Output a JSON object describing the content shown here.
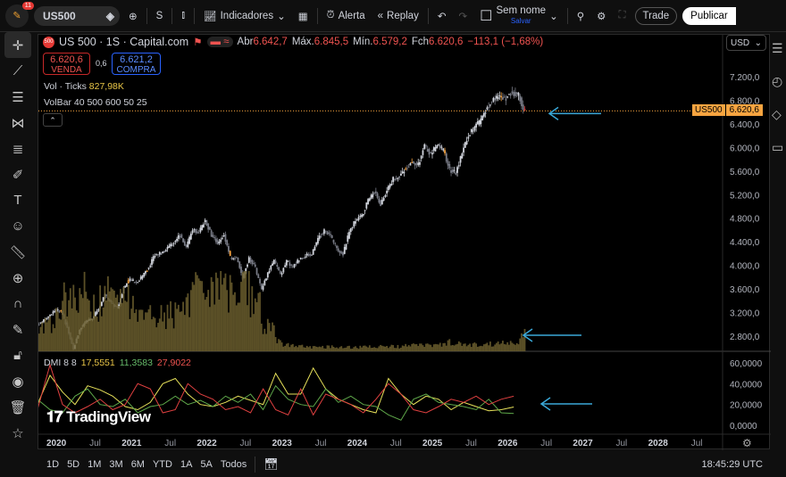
{
  "toolbar": {
    "notifications": "11",
    "symbol": "US500",
    "interval": "S",
    "indicators": "Indicadores",
    "alert": "Alerta",
    "replay": "Replay",
    "layout_name": "Sem nome",
    "layout_save": "Salvar",
    "trade": "Trade",
    "publish": "Publicar"
  },
  "legend": {
    "title": "US 500 · 1S · Capital.com",
    "open_label": "Abr",
    "open": "6.642,7",
    "high_label": "Máx.",
    "high": "6.845,5",
    "low_label": "Mín.",
    "low": "6.579,2",
    "close_label": "Fch",
    "close": "6.620,6",
    "change": "−113,1 (−1,68%)",
    "sell_price": "6.620,6",
    "sell_label": "VENDA",
    "spread": "0,6",
    "buy_price": "6.621,2",
    "buy_label": "COMPRA",
    "vol_label": "Vol · Ticks",
    "vol_value": "827,98K",
    "volbar": "VolBar 40 500 600 50 25",
    "dmi_label": "DMI 8 8",
    "dmi_adx": "17,5551",
    "dmi_plus": "11,3583",
    "dmi_minus": "27,9022"
  },
  "currency": "USD",
  "price_tag": {
    "symbol": "US500",
    "price": "6.620,6"
  },
  "colors": {
    "accent_orange": "#f7a440",
    "up": "#d1d4dc",
    "down": "#787b86",
    "adx": "#e8e25a",
    "plus_di": "#5fa84a",
    "minus_di": "#e04040",
    "arrow": "#3aa8d8"
  },
  "bottom": {
    "ranges": [
      "1D",
      "5D",
      "1M",
      "3M",
      "6M",
      "YTD",
      "1A",
      "5A",
      "Todos"
    ],
    "clock": "18:45:29 UTC"
  },
  "watermark": "TradingView",
  "chart_data": {
    "type": "candlestick",
    "interval": "weekly",
    "price_axis": {
      "ticks": [
        "7.200,0",
        "6.800,0",
        "6.400,0",
        "6.000,0",
        "5.600,0",
        "5.200,0",
        "4.800,0",
        "4.400,0",
        "4.000,0",
        "3.600,0",
        "3.200,0",
        "2.800,0"
      ],
      "range": [
        2620,
        7550
      ]
    },
    "time_axis": {
      "ticks": [
        "2020",
        "Jul",
        "2021",
        "Jul",
        "2022",
        "Jul",
        "2023",
        "Jul",
        "2024",
        "Jul",
        "2025",
        "Jul",
        "2026",
        "Jul",
        "2027",
        "Jul",
        "2028",
        "Jul"
      ]
    },
    "monthly_close_start": "2019-10",
    "monthly_close": [
      3038,
      3141,
      3231,
      3226,
      2954,
      2585,
      2912,
      3044,
      3100,
      3271,
      3500,
      3363,
      3270,
      3622,
      3756,
      3714,
      3811,
      3973,
      4181,
      4204,
      4298,
      4395,
      4523,
      4308,
      4605,
      4567,
      4766,
      4516,
      4374,
      4530,
      4132,
      4132,
      3785,
      4130,
      3955,
      3586,
      3872,
      4080,
      3840,
      4077,
      3970,
      4109,
      4169,
      4180,
      4450,
      4589,
      4508,
      4288,
      4194,
      4568,
      4770,
      4846,
      5096,
      5254,
      5036,
      5278,
      5460,
      5522,
      5648,
      5762,
      5705,
      6032,
      5882,
      6041,
      5955,
      5612,
      5569,
      5912,
      6205,
      6339,
      6460,
      6688,
      6840,
      6849,
      6845,
      6940,
      6878,
      6620
    ],
    "monthly_volume_k": [
      900,
      1000,
      1200,
      1500,
      2200,
      3000,
      2600,
      2400,
      2200,
      2000,
      2100,
      2300,
      2500,
      2400,
      2200,
      2000,
      1800,
      1700,
      1600,
      1500,
      1500,
      1600,
      1700,
      2100,
      2200,
      2400,
      2600,
      2800,
      2900,
      3000,
      2600,
      2400,
      2500,
      2700,
      2300,
      1900,
      1200,
      900,
      500,
      300,
      250,
      220,
      200,
      180,
      180,
      170,
      180,
      200,
      200,
      190,
      180,
      170,
      180,
      190,
      200,
      210,
      200,
      190,
      220,
      260,
      240,
      250,
      260,
      270,
      290,
      380,
      360,
      300,
      280,
      290,
      300,
      310,
      320,
      340,
      360,
      380,
      420,
      827.98
    ],
    "dmi": {
      "axis_ticks": [
        "60,0000",
        "40,0000",
        "20,0000",
        "0,0000"
      ],
      "range": [
        0,
        60
      ],
      "step": "bimonthly",
      "adx": [
        20,
        48,
        32,
        20,
        38,
        34,
        28,
        18,
        15,
        22,
        40,
        45,
        30,
        20,
        18,
        22,
        28,
        24,
        20,
        50,
        30,
        30,
        55,
        35,
        25,
        20,
        15,
        12,
        45,
        30,
        20,
        28,
        25,
        15,
        22,
        18,
        14,
        15,
        17.56
      ],
      "plus_di": [
        25,
        15,
        12,
        28,
        35,
        20,
        18,
        25,
        12,
        18,
        20,
        28,
        20,
        24,
        18,
        28,
        22,
        30,
        15,
        38,
        25,
        20,
        18,
        35,
        22,
        28,
        20,
        18,
        10,
        5,
        25,
        30,
        22,
        20,
        18,
        15,
        25,
        12,
        11.36
      ],
      "minus_di": [
        15,
        58,
        20,
        12,
        18,
        25,
        15,
        20,
        40,
        35,
        12,
        15,
        40,
        30,
        25,
        15,
        18,
        12,
        35,
        15,
        10,
        35,
        10,
        30,
        25,
        20,
        12,
        25,
        40,
        30,
        15,
        12,
        18,
        25,
        22,
        28,
        20,
        25,
        27.9
      ]
    }
  }
}
